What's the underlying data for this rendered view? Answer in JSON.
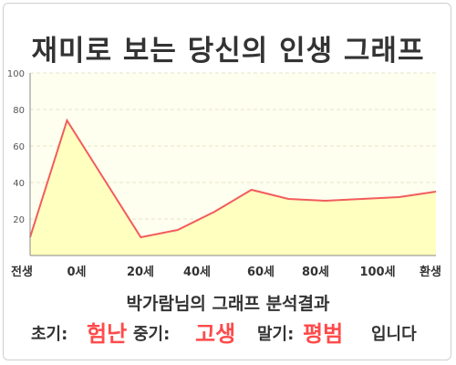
{
  "title": "재미로 보는 당신의 인생 그래프",
  "chart_data": {
    "type": "area",
    "x": [
      0,
      1,
      2,
      3,
      4,
      5,
      6,
      7,
      8,
      9,
      10,
      11
    ],
    "values": [
      10,
      74,
      42,
      10,
      14,
      24,
      36,
      31,
      30,
      31,
      32,
      35
    ],
    "x_tick_labels": [
      "전생",
      "0세",
      "20세",
      "40세",
      "60세",
      "80세",
      "100세",
      "환생"
    ],
    "y_ticks": [
      20,
      40,
      60,
      80,
      100
    ],
    "ylim": [
      0,
      100
    ],
    "grid": true,
    "line_color": "#f25c5c",
    "fill_color": "#ffffc0",
    "plot_bg": "#fffff0"
  },
  "subtitle": "박가람님의 그래프 분석결과",
  "result": {
    "early_label": "초기:",
    "early_value": "험난",
    "middle_label": "중기:",
    "middle_value": "고생",
    "late_label": "말기:",
    "late_value": "평범",
    "ending": "입니다"
  }
}
